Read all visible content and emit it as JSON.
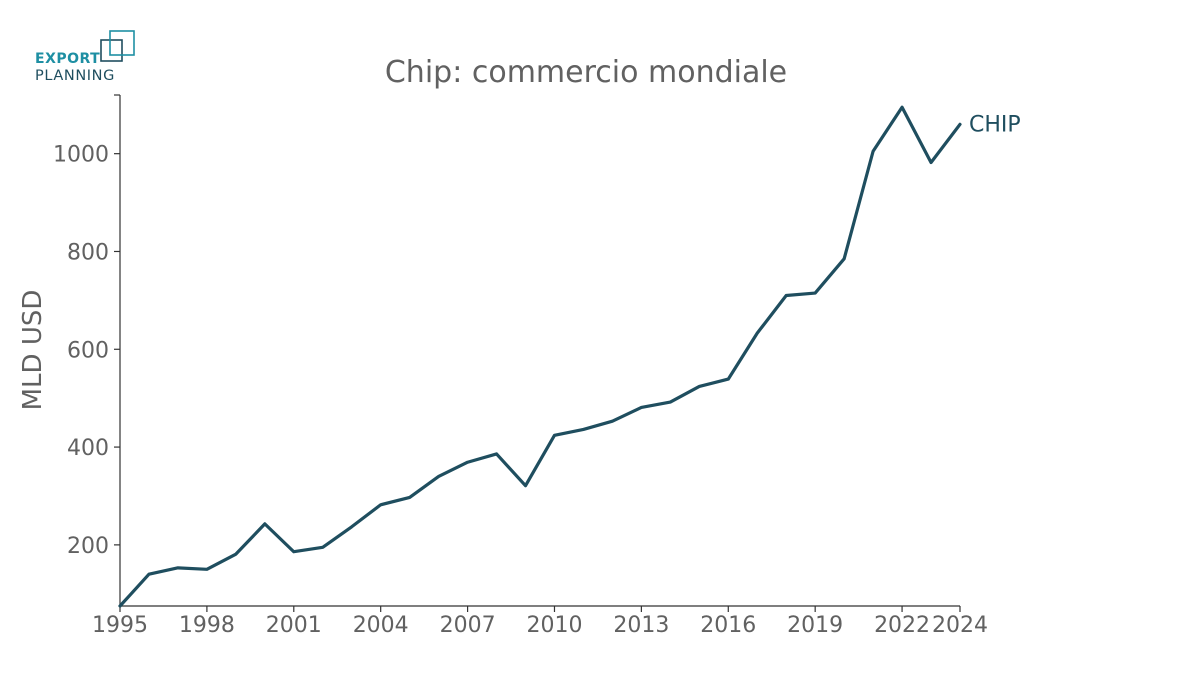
{
  "logo": {
    "line1": "EXPORT",
    "line2": "PLANNING",
    "color_primary": "#1e8fa3",
    "color_secondary": "#1f4e5f"
  },
  "colors": {
    "line": "#1f4e5f",
    "text": "#616161",
    "axis": "#333333"
  },
  "chart_data": {
    "type": "line",
    "title": "Chip: commercio mondiale",
    "xlabel": "",
    "ylabel": "MLD USD",
    "x": [
      1995,
      1996,
      1997,
      1998,
      1999,
      2000,
      2001,
      2002,
      2003,
      2004,
      2005,
      2006,
      2007,
      2008,
      2009,
      2010,
      2011,
      2012,
      2013,
      2014,
      2015,
      2016,
      2017,
      2018,
      2019,
      2020,
      2021,
      2022,
      2023,
      2024
    ],
    "series": [
      {
        "name": "CHIP",
        "values": [
          75,
          140,
          153,
          150,
          181,
          243,
          186,
          195,
          237,
          282,
          297,
          340,
          369,
          386,
          321,
          424,
          436,
          453,
          481,
          492,
          524,
          539,
          633,
          710,
          715,
          785,
          1005,
          1095,
          982,
          1060
        ]
      }
    ],
    "xticks": [
      1995,
      1998,
      2001,
      2004,
      2007,
      2010,
      2013,
      2016,
      2019,
      2022,
      2024
    ],
    "yticks": [
      200,
      400,
      600,
      800,
      1000
    ],
    "xlim": [
      1995,
      2024
    ],
    "ylim": [
      75,
      1120
    ],
    "grid": false,
    "legend": "inline-end"
  }
}
